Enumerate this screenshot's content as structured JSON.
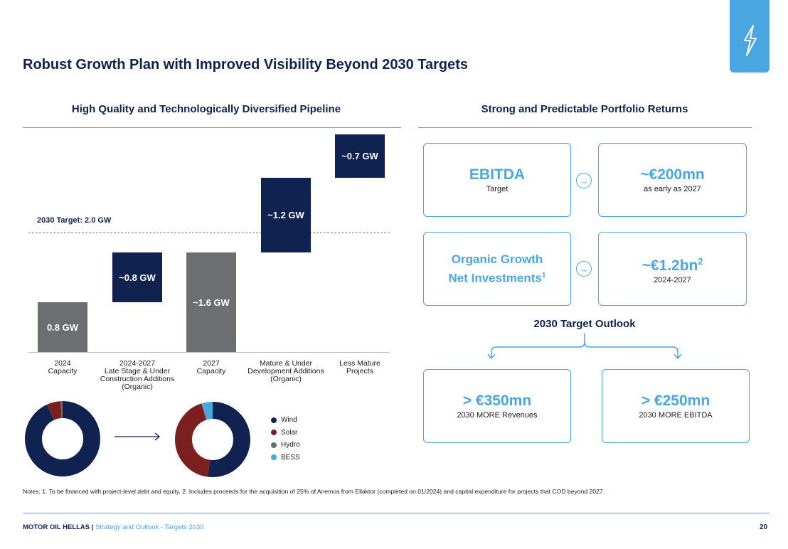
{
  "page": {
    "title": "Robust Growth Plan with Improved Visibility Beyond 2030 Targets",
    "page_number": "20"
  },
  "left": {
    "section_title": "High Quality and Technologically Diversified Pipeline",
    "target_label": "2030 Target: 2.0 GW"
  },
  "chart_data": [
    {
      "type": "bar",
      "subtype": "waterfall",
      "target": {
        "label": "2030 Target: 2.0 GW",
        "value": 2.0
      },
      "ylim": [
        0,
        2.7
      ],
      "bars": [
        {
          "category": "2024\nCapacity",
          "label": "0.8 GW",
          "base": 0,
          "value": 0.8,
          "kind": "total",
          "color": "#6d6e71"
        },
        {
          "category": "2024-2027\nLate Stage & Under\nConstruction Additions\n(Organic)",
          "label": "~0.8 GW",
          "base": 0.8,
          "value": 0.8,
          "kind": "delta",
          "color": "#10224f"
        },
        {
          "category": "2027\nCapacity",
          "label": "~1.6 GW",
          "base": 0,
          "value": 1.6,
          "kind": "total",
          "color": "#6d6e71"
        },
        {
          "category": "Mature & Under\nDevelopment Additions\n(Organic)",
          "label": "~1.2 GW",
          "base": 1.6,
          "value": 1.2,
          "kind": "delta",
          "color": "#10224f"
        },
        {
          "category": "Less Mature\nProjects",
          "label": "~0.7 GW",
          "base": 2.8,
          "value": 0.7,
          "kind": "delta",
          "color": "#10224f"
        }
      ]
    },
    {
      "type": "pie",
      "subtype": "donut",
      "series": [
        {
          "name": "Wind",
          "value": 93,
          "color": "#10224f"
        },
        {
          "name": "Solar",
          "value": 6,
          "color": "#7b1f1f"
        },
        {
          "name": "Hydro",
          "value": 1,
          "color": "#6d6e71"
        },
        {
          "name": "BESS",
          "value": 0,
          "color": "#4aa6e0"
        }
      ]
    },
    {
      "type": "pie",
      "subtype": "donut",
      "series": [
        {
          "name": "Wind",
          "value": 52,
          "color": "#10224f"
        },
        {
          "name": "Solar",
          "value": 43,
          "color": "#7b1f1f"
        },
        {
          "name": "Hydro",
          "value": 0,
          "color": "#6d6e71"
        },
        {
          "name": "BESS",
          "value": 5,
          "color": "#4aa6e0"
        }
      ]
    }
  ],
  "legend": [
    {
      "name": "Wind",
      "color": "#10224f"
    },
    {
      "name": "Solar",
      "color": "#7b1f1f"
    },
    {
      "name": "Hydro",
      "color": "#6d6e71"
    },
    {
      "name": "BESS",
      "color": "#4aa6e0"
    }
  ],
  "right": {
    "section_title": "Strong and Predictable Portfolio Returns",
    "ebitda": {
      "title": "EBITDA",
      "sub": "Target",
      "value": "~€200mn",
      "value_sub": "as early as 2027"
    },
    "investments": {
      "title_line1": "Organic Growth",
      "title_line2": "Net Investments",
      "title_sup": "1",
      "value": "~€1.2bn",
      "value_sup": "2",
      "value_sub": "2024-2027"
    },
    "outlook_title": "2030 Target Outlook",
    "revenues": {
      "value": "> €350mn",
      "sub": "2030 MORE Revenues"
    },
    "ebitda_2030": {
      "value": "> €250mn",
      "sub": "2030 MORE EBITDA"
    }
  },
  "notes": "Notes: 1. To be financed with project-level debt and equity.    2. Includes proceeds for the acquisition of 25% of Anemos from Ellaktor (completed on 01/2024) and capital expenditure for projects that COD beyond 2027.",
  "footer": {
    "brand": "MOTOR OIL HELLAS",
    "separator": " | ",
    "subtitle": "Strategy and Outlook - Targets 2030"
  },
  "icons": {
    "tab": "lightning-icon",
    "arrow": "arrow-right-circle-icon"
  },
  "colors": {
    "navy": "#10224f",
    "accent": "#4aa6e0",
    "gray": "#6d6e71",
    "solar": "#7b1f1f"
  }
}
